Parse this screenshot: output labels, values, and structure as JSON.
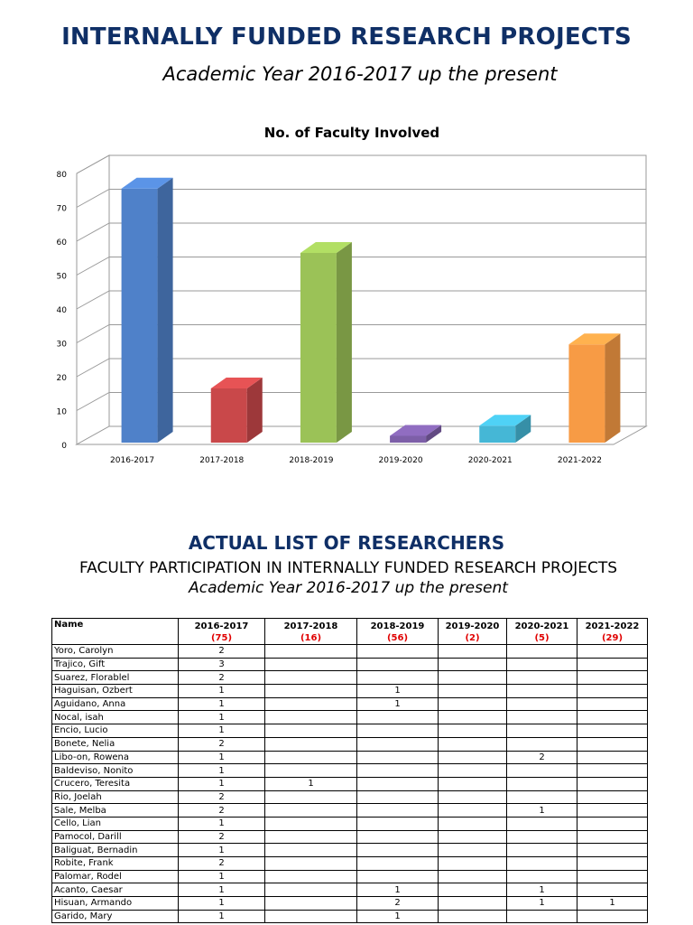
{
  "header": {
    "title": "INTERNALLY FUNDED RESEARCH PROJECTS",
    "subtitle": "Academic Year 2016-2017 up the present"
  },
  "chart_data": {
    "type": "bar",
    "title": "No. of Faculty Involved",
    "categories": [
      "2016-2017",
      "2017-2018",
      "2018-2019",
      "2019-2020",
      "2020-2021",
      "2021-2022"
    ],
    "values": [
      75,
      16,
      56,
      2,
      5,
      29
    ],
    "colors": [
      "#4f81c9",
      "#c9484a",
      "#9bc257",
      "#7d5fa8",
      "#45b7d6",
      "#f79b45"
    ],
    "ylim": [
      0,
      80
    ],
    "yticks": [
      0,
      10,
      20,
      30,
      40,
      50,
      60,
      70,
      80
    ],
    "xlabel": "",
    "ylabel": "",
    "grid": true
  },
  "section": {
    "title": "ACTUAL LIST OF RESEARCHERS",
    "subtitle": "FACULTY PARTICIPATION IN INTERNALLY FUNDED RESEARCH PROJECTS",
    "subtitle2": "Academic Year 2016-2017 up the present"
  },
  "table": {
    "name_header": "Name",
    "columns": [
      {
        "year": "2016-2017",
        "total": "(75)"
      },
      {
        "year": "2017-2018",
        "total": "(16)"
      },
      {
        "year": "2018-2019",
        "total": "(56)"
      },
      {
        "year": "2019-2020",
        "total": "(2)"
      },
      {
        "year": "2020-2021",
        "total": "(5)"
      },
      {
        "year": "2021-2022",
        "total": "(29)"
      }
    ],
    "rows": [
      {
        "name": "Yoro, Carolyn",
        "values": [
          "2",
          "",
          "",
          "",
          "",
          ""
        ]
      },
      {
        "name": "Trajico, Gift",
        "values": [
          "3",
          "",
          "",
          "",
          "",
          ""
        ]
      },
      {
        "name": "Suarez, Florablel",
        "values": [
          "2",
          "",
          "",
          "",
          "",
          ""
        ]
      },
      {
        "name": "Haguisan, Ozbert",
        "values": [
          "1",
          "",
          "1",
          "",
          "",
          ""
        ]
      },
      {
        "name": "Aguidano, Anna",
        "values": [
          "1",
          "",
          "1",
          "",
          "",
          ""
        ]
      },
      {
        "name": "Nocal, isah",
        "values": [
          "1",
          "",
          "",
          "",
          "",
          ""
        ]
      },
      {
        "name": "Encio, Lucio",
        "values": [
          "1",
          "",
          "",
          "",
          "",
          ""
        ]
      },
      {
        "name": "Bonete, Nelia",
        "values": [
          "2",
          "",
          "",
          "",
          "",
          ""
        ]
      },
      {
        "name": "Libo-on, Rowena",
        "values": [
          "1",
          "",
          "",
          "",
          "2",
          ""
        ]
      },
      {
        "name": "Baldeviso, Nonito",
        "values": [
          "1",
          "",
          "",
          "",
          "",
          ""
        ]
      },
      {
        "name": "Crucero, Teresita",
        "values": [
          "1",
          "1",
          "",
          "",
          "",
          ""
        ]
      },
      {
        "name": "Rio, Joelah",
        "values": [
          "2",
          "",
          "",
          "",
          "",
          ""
        ]
      },
      {
        "name": "Sale, Melba",
        "values": [
          "2",
          "",
          "",
          "",
          "1",
          ""
        ]
      },
      {
        "name": "Cello, Lian",
        "values": [
          "1",
          "",
          "",
          "",
          "",
          ""
        ]
      },
      {
        "name": "Pamocol, Darill",
        "values": [
          "2",
          "",
          "",
          "",
          "",
          ""
        ]
      },
      {
        "name": "Baliguat, Bernadin",
        "values": [
          "1",
          "",
          "",
          "",
          "",
          ""
        ]
      },
      {
        "name": "Robite, Frank",
        "values": [
          "2",
          "",
          "",
          "",
          "",
          ""
        ]
      },
      {
        "name": "Palomar, Rodel",
        "values": [
          "1",
          "",
          "",
          "",
          "",
          ""
        ]
      },
      {
        "name": "Acanto, Caesar",
        "values": [
          "1",
          "",
          "1",
          "",
          "1",
          ""
        ]
      },
      {
        "name": "Hisuan, Armando",
        "values": [
          "1",
          "",
          "2",
          "",
          "1",
          "1"
        ]
      },
      {
        "name": "Garido, Mary",
        "values": [
          "1",
          "",
          "1",
          "",
          "",
          ""
        ]
      }
    ]
  }
}
